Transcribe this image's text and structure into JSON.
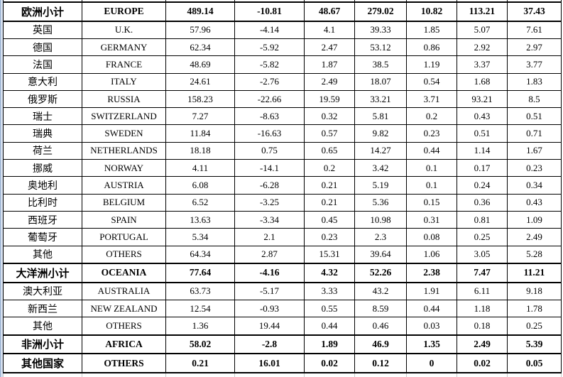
{
  "app": {
    "kind": "spreadsheet-table-region",
    "colors": {
      "border": "#000000",
      "text": "#000000",
      "left_strip": "#d4dff0",
      "left_strip_edge": "#8fa9cb",
      "gridline_continuation": "#c9c9c9",
      "background": "#ffffff"
    }
  },
  "table": {
    "rows": [
      {
        "cn": "欧洲小计",
        "en": "EUROPE",
        "values": [
          "489.14",
          "-10.81",
          "48.67",
          "279.02",
          "10.82",
          "113.21",
          "37.43"
        ],
        "bold": true
      },
      {
        "cn": "英国",
        "en": "U.K.",
        "values": [
          "57.96",
          "-4.14",
          "4.1",
          "39.33",
          "1.85",
          "5.07",
          "7.61"
        ],
        "bold": false
      },
      {
        "cn": "德国",
        "en": "GERMANY",
        "values": [
          "62.34",
          "-5.92",
          "2.47",
          "53.12",
          "0.86",
          "2.92",
          "2.97"
        ],
        "bold": false
      },
      {
        "cn": "法国",
        "en": "FRANCE",
        "values": [
          "48.69",
          "-5.82",
          "1.87",
          "38.5",
          "1.19",
          "3.37",
          "3.77"
        ],
        "bold": false
      },
      {
        "cn": "意大利",
        "en": "ITALY",
        "values": [
          "24.61",
          "-2.76",
          "2.49",
          "18.07",
          "0.54",
          "1.68",
          "1.83"
        ],
        "bold": false
      },
      {
        "cn": "俄罗斯",
        "en": "RUSSIA",
        "values": [
          "158.23",
          "-22.66",
          "19.59",
          "33.21",
          "3.71",
          "93.21",
          "8.5"
        ],
        "bold": false
      },
      {
        "cn": "瑞士",
        "en": "SWITZERLAND",
        "values": [
          "7.27",
          "-8.63",
          "0.32",
          "5.81",
          "0.2",
          "0.43",
          "0.51"
        ],
        "bold": false
      },
      {
        "cn": "瑞典",
        "en": "SWEDEN",
        "values": [
          "11.84",
          "-16.63",
          "0.57",
          "9.82",
          "0.23",
          "0.51",
          "0.71"
        ],
        "bold": false
      },
      {
        "cn": "荷兰",
        "en": "NETHERLANDS",
        "values": [
          "18.18",
          "0.75",
          "0.65",
          "14.27",
          "0.44",
          "1.14",
          "1.67"
        ],
        "bold": false
      },
      {
        "cn": "挪威",
        "en": "NORWAY",
        "values": [
          "4.11",
          "-14.1",
          "0.2",
          "3.42",
          "0.1",
          "0.17",
          "0.23"
        ],
        "bold": false
      },
      {
        "cn": "奥地利",
        "en": "AUSTRIA",
        "values": [
          "6.08",
          "-6.28",
          "0.21",
          "5.19",
          "0.1",
          "0.24",
          "0.34"
        ],
        "bold": false
      },
      {
        "cn": "比利时",
        "en": "BELGIUM",
        "values": [
          "6.52",
          "-3.25",
          "0.21",
          "5.36",
          "0.15",
          "0.36",
          "0.43"
        ],
        "bold": false
      },
      {
        "cn": "西班牙",
        "en": "SPAIN",
        "values": [
          "13.63",
          "-3.34",
          "0.45",
          "10.98",
          "0.31",
          "0.81",
          "1.09"
        ],
        "bold": false
      },
      {
        "cn": "葡萄牙",
        "en": "PORTUGAL",
        "values": [
          "5.34",
          "2.1",
          "0.23",
          "2.3",
          "0.08",
          "0.25",
          "2.49"
        ],
        "bold": false
      },
      {
        "cn": "其他",
        "en": "OTHERS",
        "values": [
          "64.34",
          "2.87",
          "15.31",
          "39.64",
          "1.06",
          "3.05",
          "5.28"
        ],
        "bold": false
      },
      {
        "cn": "大洋洲小计",
        "en": "OCEANIA",
        "values": [
          "77.64",
          "-4.16",
          "4.32",
          "52.26",
          "2.38",
          "7.47",
          "11.21"
        ],
        "bold": true
      },
      {
        "cn": "澳大利亚",
        "en": "AUSTRALIA",
        "values": [
          "63.73",
          "-5.17",
          "3.33",
          "43.2",
          "1.91",
          "6.11",
          "9.18"
        ],
        "bold": false
      },
      {
        "cn": "新西兰",
        "en": "NEW ZEALAND",
        "values": [
          "12.54",
          "-0.93",
          "0.55",
          "8.59",
          "0.44",
          "1.18",
          "1.78"
        ],
        "bold": false
      },
      {
        "cn": "其他",
        "en": "OTHERS",
        "values": [
          "1.36",
          "19.44",
          "0.44",
          "0.46",
          "0.03",
          "0.18",
          "0.25"
        ],
        "bold": false
      },
      {
        "cn": "非洲小计",
        "en": "AFRICA",
        "values": [
          "58.02",
          "-2.8",
          "1.89",
          "46.9",
          "1.35",
          "2.49",
          "5.39"
        ],
        "bold": true
      },
      {
        "cn": "其他国家",
        "en": "OTHERS",
        "values": [
          "0.21",
          "16.01",
          "0.02",
          "0.12",
          "0",
          "0.02",
          "0.05"
        ],
        "bold": true
      }
    ]
  }
}
